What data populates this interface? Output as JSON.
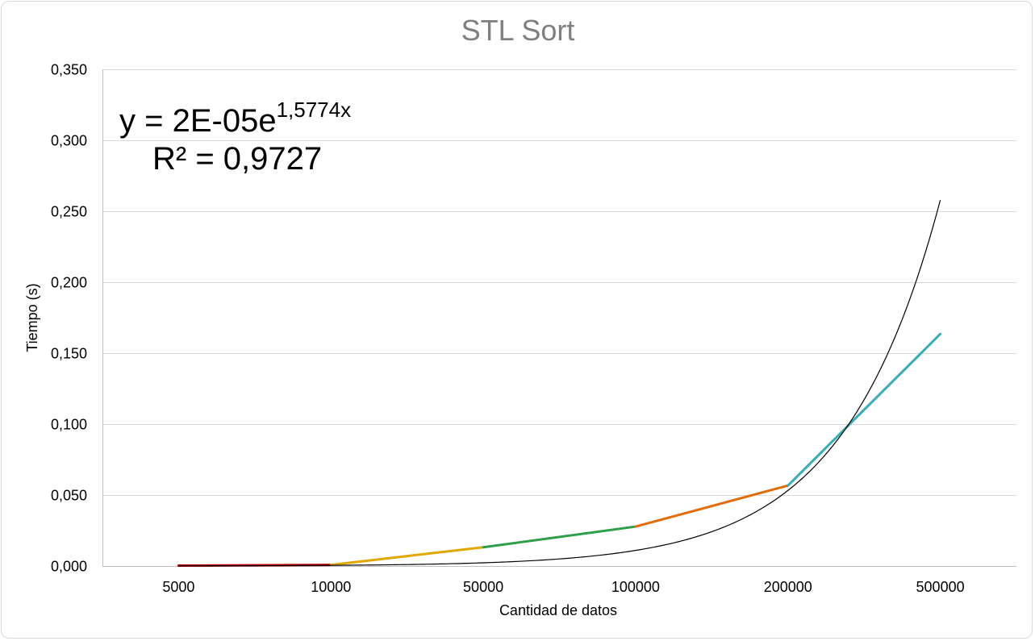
{
  "chart_data": {
    "type": "line",
    "title": "STL Sort",
    "xlabel": "Cantidad de datos",
    "ylabel": "Tiempo (s)",
    "categories": [
      "5000",
      "10000",
      "50000",
      "100000",
      "200000",
      "500000"
    ],
    "values": [
      0.0003,
      0.0008,
      0.0132,
      0.0278,
      0.0567,
      0.1635
    ],
    "segment_colors": [
      "#c00000",
      "#e0a800",
      "#2e9e4a",
      "#e36c0a",
      "#3aacb4"
    ],
    "ylim": [
      0,
      0.35
    ],
    "yticks": [
      0,
      0.05,
      0.1,
      0.15,
      0.2,
      0.25,
      0.3,
      0.35
    ],
    "ytick_labels": [
      "0,000",
      "0,050",
      "0,100",
      "0,150",
      "0,200",
      "0,250",
      "0,300",
      "0,350"
    ],
    "grid": true,
    "trendline": {
      "type": "exponential",
      "a": 2e-05,
      "b": 1.5774,
      "color": "#000000",
      "equation_prefix": "y = 2E-05e",
      "equation_exponent": "1,5774x",
      "r_squared_label": "R² = 0,9727"
    }
  }
}
